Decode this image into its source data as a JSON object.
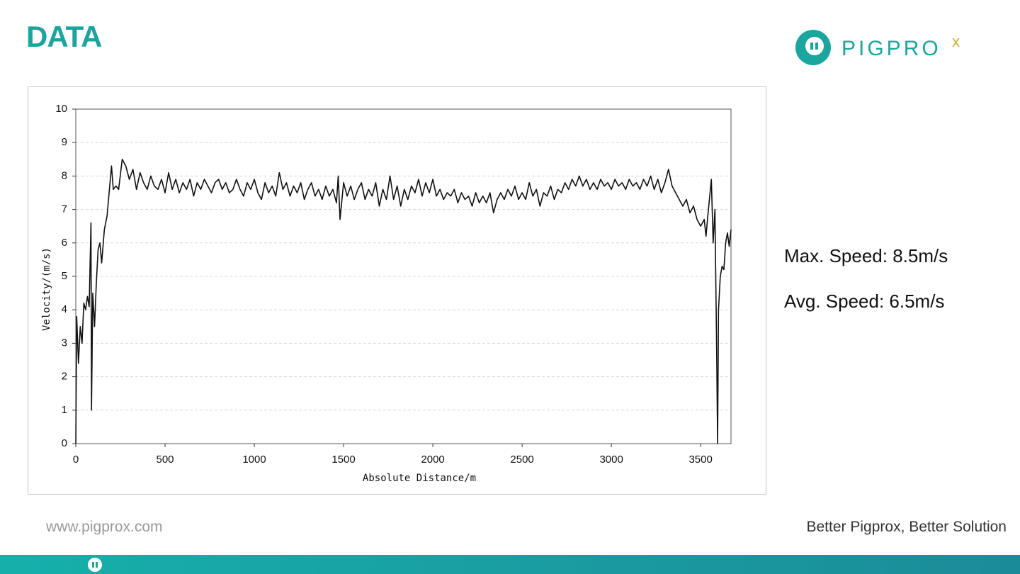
{
  "header": {
    "title": "DATA",
    "logo_text": "PIGPRO",
    "logo_mark": "x"
  },
  "chart_data": {
    "type": "line",
    "xlabel": "Absolute Distance/m",
    "ylabel": "Velocity/(m/s)",
    "xlim": [
      0,
      3670
    ],
    "ylim": [
      0,
      10
    ],
    "xticks": [
      0,
      500,
      1000,
      1500,
      2000,
      2500,
      3000,
      3500
    ],
    "yticks": [
      0,
      1,
      2,
      3,
      4,
      5,
      6,
      7,
      8,
      9,
      10
    ],
    "grid": true,
    "x": [
      0,
      5,
      15,
      25,
      35,
      45,
      55,
      65,
      75,
      85,
      88,
      95,
      105,
      115,
      125,
      135,
      145,
      160,
      175,
      190,
      200,
      210,
      225,
      240,
      260,
      280,
      300,
      320,
      340,
      360,
      380,
      400,
      420,
      440,
      460,
      480,
      500,
      520,
      540,
      560,
      580,
      600,
      620,
      640,
      660,
      680,
      700,
      720,
      740,
      760,
      780,
      800,
      820,
      840,
      860,
      880,
      900,
      920,
      940,
      960,
      980,
      1000,
      1020,
      1040,
      1060,
      1080,
      1100,
      1120,
      1140,
      1160,
      1180,
      1200,
      1220,
      1240,
      1260,
      1280,
      1300,
      1320,
      1340,
      1360,
      1380,
      1400,
      1420,
      1440,
      1460,
      1470,
      1480,
      1500,
      1520,
      1540,
      1560,
      1580,
      1600,
      1620,
      1640,
      1660,
      1680,
      1700,
      1720,
      1740,
      1760,
      1780,
      1800,
      1820,
      1840,
      1860,
      1880,
      1900,
      1920,
      1940,
      1960,
      1980,
      2000,
      2020,
      2040,
      2060,
      2080,
      2100,
      2120,
      2140,
      2160,
      2180,
      2200,
      2220,
      2240,
      2260,
      2280,
      2300,
      2320,
      2340,
      2360,
      2380,
      2400,
      2420,
      2440,
      2460,
      2480,
      2500,
      2520,
      2540,
      2560,
      2580,
      2600,
      2620,
      2640,
      2660,
      2680,
      2700,
      2720,
      2740,
      2760,
      2780,
      2800,
      2820,
      2840,
      2860,
      2880,
      2900,
      2920,
      2940,
      2960,
      2980,
      3000,
      3020,
      3040,
      3060,
      3080,
      3100,
      3120,
      3140,
      3160,
      3180,
      3200,
      3220,
      3240,
      3260,
      3280,
      3300,
      3320,
      3340,
      3360,
      3380,
      3400,
      3420,
      3440,
      3460,
      3480,
      3500,
      3520,
      3530,
      3540,
      3560,
      3570,
      3580,
      3590,
      3595,
      3600,
      3610,
      3620,
      3630,
      3640,
      3650,
      3660,
      3670
    ],
    "series": [
      {
        "name": "Velocity",
        "color": "#111111",
        "values": [
          0,
          3.8,
          2.4,
          3.5,
          3.0,
          4.2,
          4.0,
          4.4,
          4.1,
          6.6,
          1.0,
          4.5,
          3.5,
          4.8,
          5.8,
          6.0,
          5.4,
          6.4,
          6.8,
          7.7,
          8.3,
          7.6,
          7.7,
          7.6,
          8.5,
          8.3,
          7.9,
          8.2,
          7.6,
          8.1,
          7.8,
          7.6,
          8.0,
          7.7,
          7.6,
          7.9,
          7.5,
          8.1,
          7.6,
          7.9,
          7.5,
          7.8,
          7.6,
          7.9,
          7.4,
          7.8,
          7.6,
          7.9,
          7.7,
          7.5,
          7.8,
          7.9,
          7.6,
          7.8,
          7.5,
          7.6,
          7.9,
          7.6,
          7.4,
          7.8,
          7.6,
          7.9,
          7.5,
          7.3,
          7.8,
          7.5,
          7.7,
          7.4,
          8.1,
          7.6,
          7.8,
          7.4,
          7.7,
          7.5,
          7.8,
          7.3,
          7.6,
          7.8,
          7.4,
          7.6,
          7.3,
          7.7,
          7.4,
          7.6,
          7.2,
          8.0,
          6.7,
          7.8,
          7.4,
          7.7,
          7.3,
          7.6,
          7.8,
          7.3,
          7.6,
          7.4,
          7.8,
          7.1,
          7.6,
          7.3,
          8.0,
          7.3,
          7.7,
          7.1,
          7.6,
          7.3,
          7.7,
          7.5,
          7.9,
          7.4,
          7.8,
          7.5,
          7.9,
          7.4,
          7.6,
          7.3,
          7.5,
          7.4,
          7.6,
          7.2,
          7.5,
          7.3,
          7.4,
          7.1,
          7.5,
          7.2,
          7.4,
          7.2,
          7.5,
          6.9,
          7.3,
          7.5,
          7.3,
          7.6,
          7.4,
          7.7,
          7.3,
          7.5,
          7.3,
          7.8,
          7.4,
          7.6,
          7.1,
          7.5,
          7.4,
          7.7,
          7.3,
          7.6,
          7.5,
          7.8,
          7.6,
          7.9,
          7.7,
          8.0,
          7.7,
          7.9,
          7.6,
          7.8,
          7.6,
          7.9,
          7.7,
          7.8,
          7.6,
          7.9,
          7.7,
          7.8,
          7.6,
          7.9,
          7.7,
          7.8,
          7.6,
          7.9,
          7.7,
          8.0,
          7.6,
          7.9,
          7.5,
          7.8,
          8.2,
          7.7,
          7.5,
          7.3,
          7.1,
          7.3,
          6.9,
          7.1,
          6.7,
          6.5,
          6.7,
          6.2,
          6.8,
          7.9,
          6.0,
          7.0,
          2.6,
          0,
          4.0,
          5.0,
          5.3,
          5.2,
          6.0,
          6.3,
          5.9,
          6.4
        ]
      }
    ]
  },
  "stats": [
    "Max. Speed: 8.5m/s",
    "Avg. Speed: 6.5m/s"
  ],
  "footer": {
    "left": "www.pigprox.com",
    "right": "Better Pigprox, Better Solution"
  }
}
